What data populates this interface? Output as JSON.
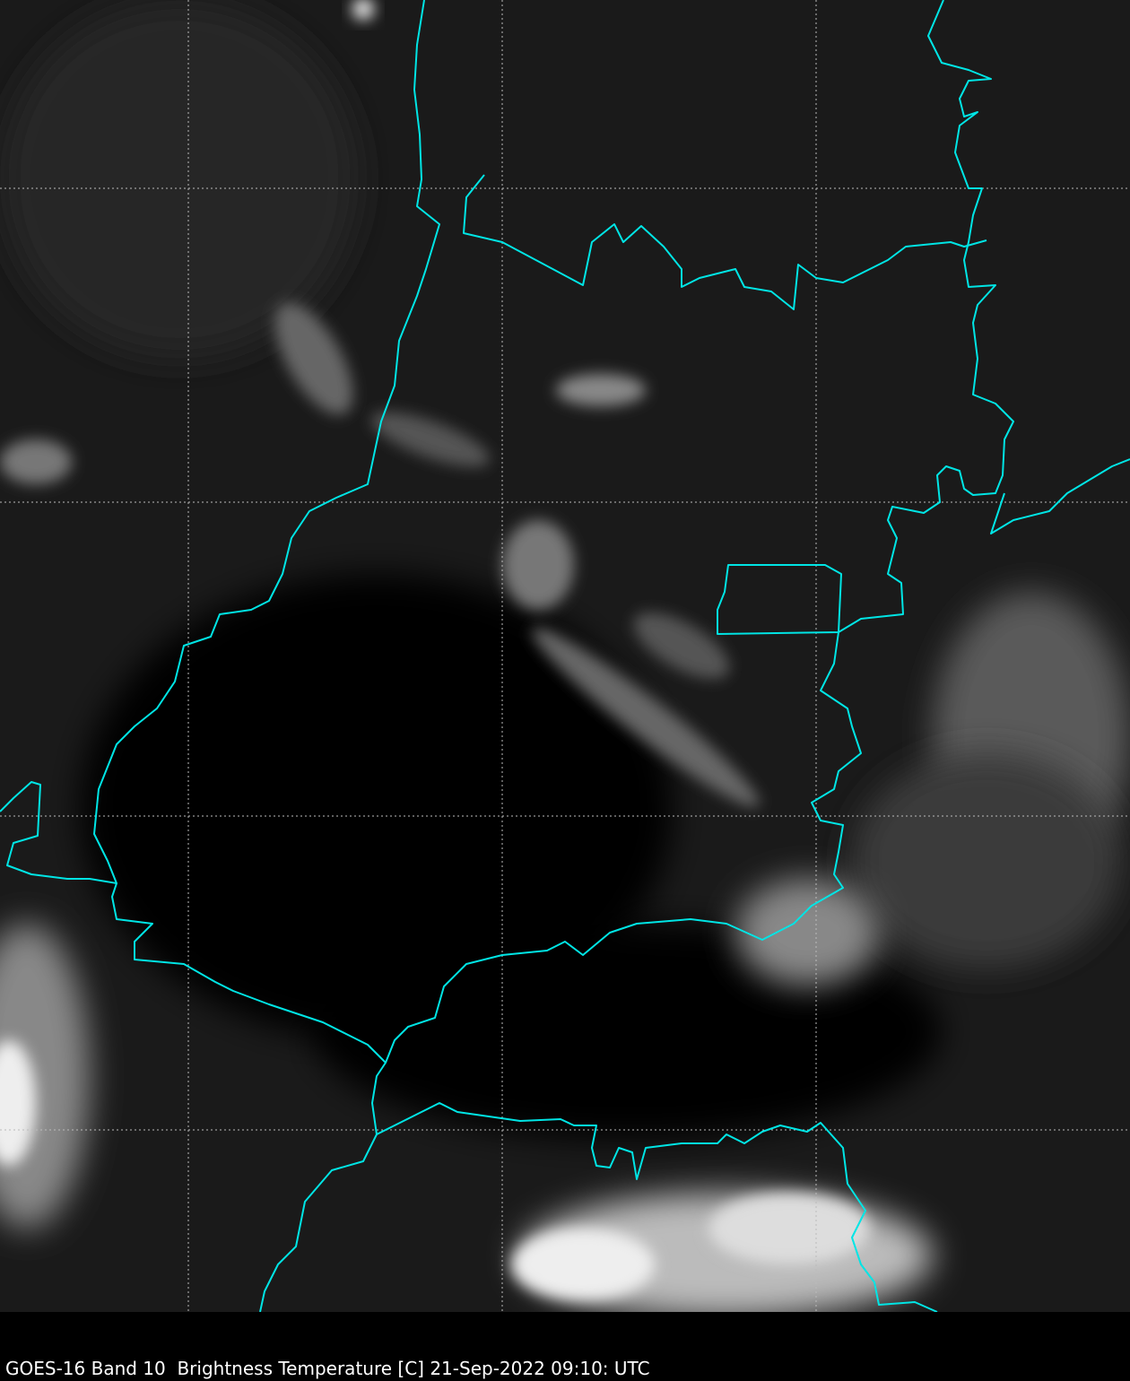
{
  "caption": "GOES-16 Band 10  Brightness Temperature [C] 21-Sep-2022 09:10: UTC",
  "colors": {
    "background": "#000000",
    "borders": "#00e5e5",
    "grid": "#bbbbbb"
  },
  "map": {
    "colormap": "grayscale",
    "gridlines": "dashed",
    "borders": "state/country boundaries"
  }
}
